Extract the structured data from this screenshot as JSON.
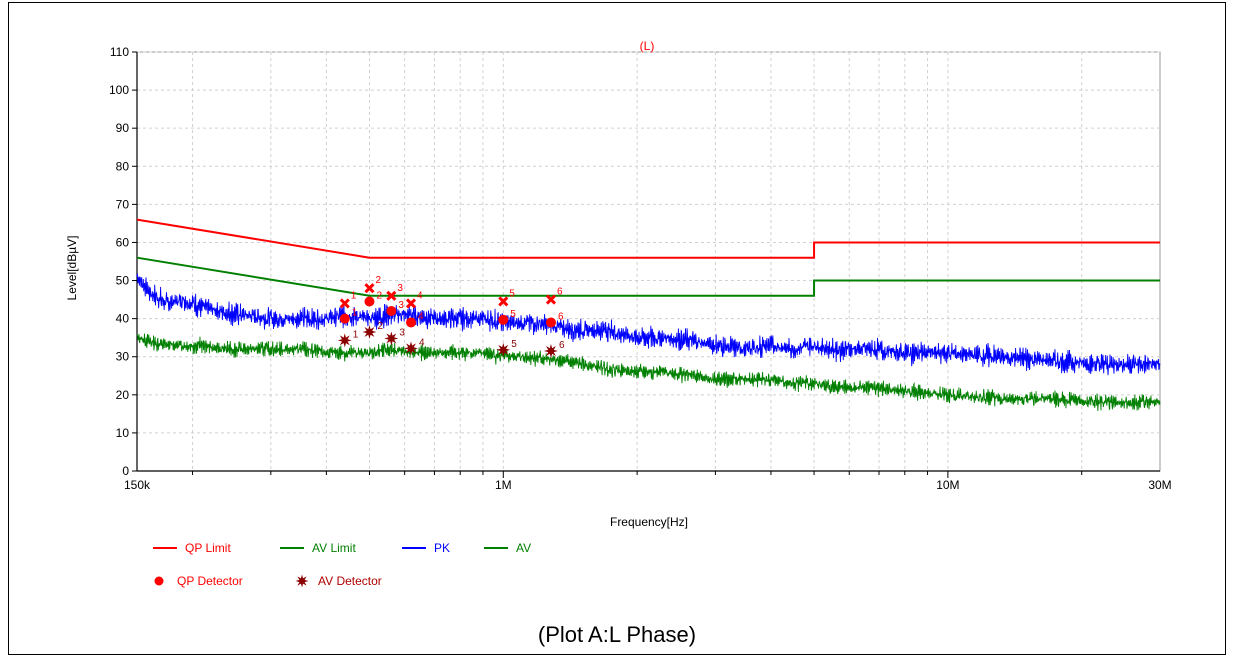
{
  "caption": "(Plot A:L Phase)",
  "chart_data": {
    "type": "line",
    "title": "(L)",
    "xlabel": "Frequency[Hz]",
    "ylabel": "Level[dBµV]",
    "x_scale": "log",
    "xlim": [
      150000,
      30000000
    ],
    "ylim": [
      0,
      110
    ],
    "y_ticks": [
      0,
      10,
      20,
      30,
      40,
      50,
      60,
      70,
      80,
      90,
      100,
      110
    ],
    "x_tick_labels": [
      {
        "value": 150000,
        "label": "150k"
      },
      {
        "value": 1000000,
        "label": "1M"
      },
      {
        "value": 10000000,
        "label": "10M"
      },
      {
        "value": 30000000,
        "label": "30M"
      }
    ],
    "grid": true,
    "legend_placement": "bottom-left",
    "colors": {
      "qp_limit": "#ff0000",
      "av_limit": "#008000",
      "pk": "#0000ff",
      "av": "#008000",
      "qp_detector": "#ff0000",
      "av_detector": "#8b0000",
      "qp_peak_marker": "#ff0000",
      "title": "#ff0000"
    },
    "series": [
      {
        "name": "QP Limit",
        "kind": "limit",
        "x": [
          150000,
          500000,
          5000000,
          5000000,
          30000000
        ],
        "y": [
          66,
          56,
          56,
          60,
          60
        ]
      },
      {
        "name": "AV Limit",
        "kind": "limit",
        "x": [
          150000,
          500000,
          5000000,
          5000000,
          30000000
        ],
        "y": [
          56,
          46,
          46,
          50,
          50
        ]
      },
      {
        "name": "PK",
        "kind": "trace",
        "x": [
          150000,
          160000,
          175000,
          190000,
          210000,
          230000,
          260000,
          300000,
          350000,
          400000,
          450000,
          500000,
          560000,
          620000,
          700000,
          800000,
          900000,
          1000000,
          1150000,
          1300000,
          1500000,
          1700000,
          2000000,
          2300000,
          2700000,
          3000000,
          3500000,
          4000000,
          4500000,
          5000000,
          5500000,
          6500000,
          8000000,
          10000000,
          13000000,
          17000000,
          22000000,
          30000000
        ],
        "y": [
          51,
          47,
          44,
          45,
          43,
          42,
          41,
          40,
          40,
          40,
          41,
          40,
          41,
          41,
          40,
          40,
          40,
          39,
          39,
          38,
          37,
          37,
          35,
          35,
          34,
          33,
          32,
          33,
          32,
          33,
          32,
          32,
          31,
          31,
          30,
          29,
          28,
          28
        ],
        "ripple": 3.5
      },
      {
        "name": "AV",
        "kind": "trace",
        "x": [
          150000,
          160000,
          175000,
          190000,
          210000,
          230000,
          260000,
          300000,
          350000,
          400000,
          450000,
          500000,
          560000,
          620000,
          700000,
          800000,
          900000,
          1000000,
          1150000,
          1300000,
          1500000,
          1700000,
          2000000,
          2300000,
          2700000,
          3000000,
          3500000,
          4000000,
          4500000,
          5000000,
          5500000,
          6500000,
          8000000,
          10000000,
          13000000,
          17000000,
          22000000,
          30000000
        ],
        "y": [
          35,
          34,
          33,
          33,
          33,
          32,
          32,
          32,
          32,
          31,
          31,
          31,
          32,
          31,
          31,
          31,
          31,
          30,
          30,
          29,
          28,
          27,
          26,
          26,
          25,
          24,
          24,
          24,
          23,
          23,
          22,
          22,
          21,
          20,
          19,
          19,
          18,
          18
        ],
        "ripple": 2.5
      }
    ],
    "qp_detector": [
      {
        "label": "1",
        "x": 440000,
        "y": 40
      },
      {
        "label": "2",
        "x": 500000,
        "y": 44.5
      },
      {
        "label": "3",
        "x": 560000,
        "y": 42
      },
      {
        "label": "4",
        "x": 620000,
        "y": 39
      },
      {
        "label": "5",
        "x": 1000000,
        "y": 39.7
      },
      {
        "label": "6",
        "x": 1280000,
        "y": 39
      }
    ],
    "av_detector": [
      {
        "label": "1",
        "x": 440000,
        "y": 34.3
      },
      {
        "label": "2",
        "x": 500000,
        "y": 36.5
      },
      {
        "label": "3",
        "x": 560000,
        "y": 34.8
      },
      {
        "label": "4",
        "x": 620000,
        "y": 32.2
      },
      {
        "label": "5",
        "x": 1000000,
        "y": 31.8
      },
      {
        "label": "6",
        "x": 1280000,
        "y": 31.5
      }
    ],
    "pk_peaks": [
      {
        "label": "1",
        "x": 440000,
        "y": 44
      },
      {
        "label": "2",
        "x": 500000,
        "y": 48
      },
      {
        "label": "3",
        "x": 560000,
        "y": 46
      },
      {
        "label": "4",
        "x": 620000,
        "y": 44
      },
      {
        "label": "5",
        "x": 1000000,
        "y": 44.5
      },
      {
        "label": "6",
        "x": 1280000,
        "y": 45
      }
    ],
    "legend": [
      {
        "name": "QP Limit",
        "symbol": "line",
        "color": "#ff0000"
      },
      {
        "name": "AV Limit",
        "symbol": "line",
        "color": "#008000"
      },
      {
        "name": "PK",
        "symbol": "line",
        "color": "#0000ff"
      },
      {
        "name": "AV",
        "symbol": "line",
        "color": "#008000"
      },
      {
        "name": "QP Detector",
        "symbol": "dot",
        "color": "#ff0000"
      },
      {
        "name": "AV Detector",
        "symbol": "star",
        "color": "#8b0000"
      }
    ]
  }
}
